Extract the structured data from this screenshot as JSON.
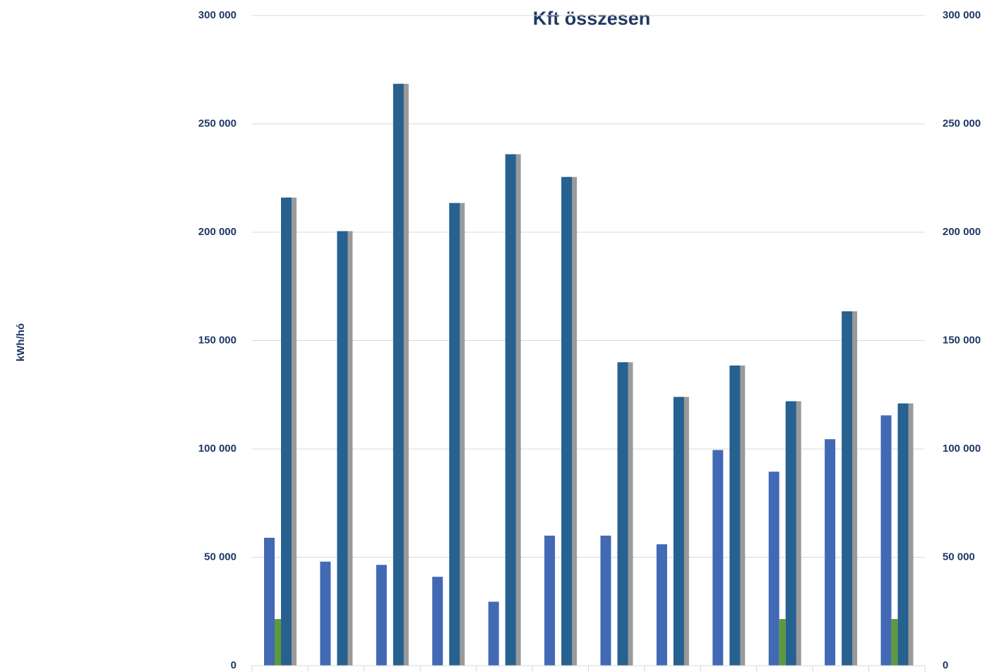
{
  "chart_data": {
    "type": "bar",
    "title": "Kft összesen",
    "y_label": "kWh/hó",
    "categories": [
      null,
      null,
      null,
      null,
      null,
      null,
      null,
      null,
      null,
      null,
      null,
      null
    ],
    "series": [
      {
        "color": "#4169b4",
        "values": [
          59000,
          48000,
          46500,
          41000,
          29500,
          60000,
          60000,
          56000,
          99500,
          89500,
          104500,
          115500
        ]
      },
      {
        "color": "#5e9a3c",
        "values": [
          21500,
          null,
          null,
          null,
          null,
          null,
          null,
          null,
          null,
          21500,
          null,
          21500
        ]
      },
      {
        "color": "#26618f",
        "values": [
          216000,
          200500,
          268500,
          213500,
          236000,
          225500,
          140000,
          124000,
          138500,
          122000,
          163500,
          121000
        ]
      },
      {
        "color": "#9a9a9a",
        "values": [
          216000,
          200500,
          268500,
          213500,
          236000,
          225500,
          140000,
          124000,
          138500,
          122000,
          163500,
          121000
        ]
      }
    ],
    "ylim": [
      0,
      300000
    ],
    "yticks": [
      {
        "value": 0,
        "label": "0"
      },
      {
        "value": 50000,
        "label": "50 000"
      },
      {
        "value": 100000,
        "label": "100 000"
      },
      {
        "value": 150000,
        "label": "150 000"
      },
      {
        "value": 200000,
        "label": "200 000"
      },
      {
        "value": 250000,
        "label": "250 000"
      },
      {
        "value": 300000,
        "label": "300 000"
      }
    ],
    "y2lim": [
      0,
      300000
    ],
    "y2ticks": [
      {
        "value": 0,
        "label": "0"
      },
      {
        "value": 50000,
        "label": "50 000"
      },
      {
        "value": 100000,
        "label": "100 000"
      },
      {
        "value": 150000,
        "label": "150 000"
      },
      {
        "value": 200000,
        "label": "200 000"
      },
      {
        "value": 250000,
        "label": "250 000"
      },
      {
        "value": 300000,
        "label": "300 000"
      }
    ],
    "grid": true
  }
}
